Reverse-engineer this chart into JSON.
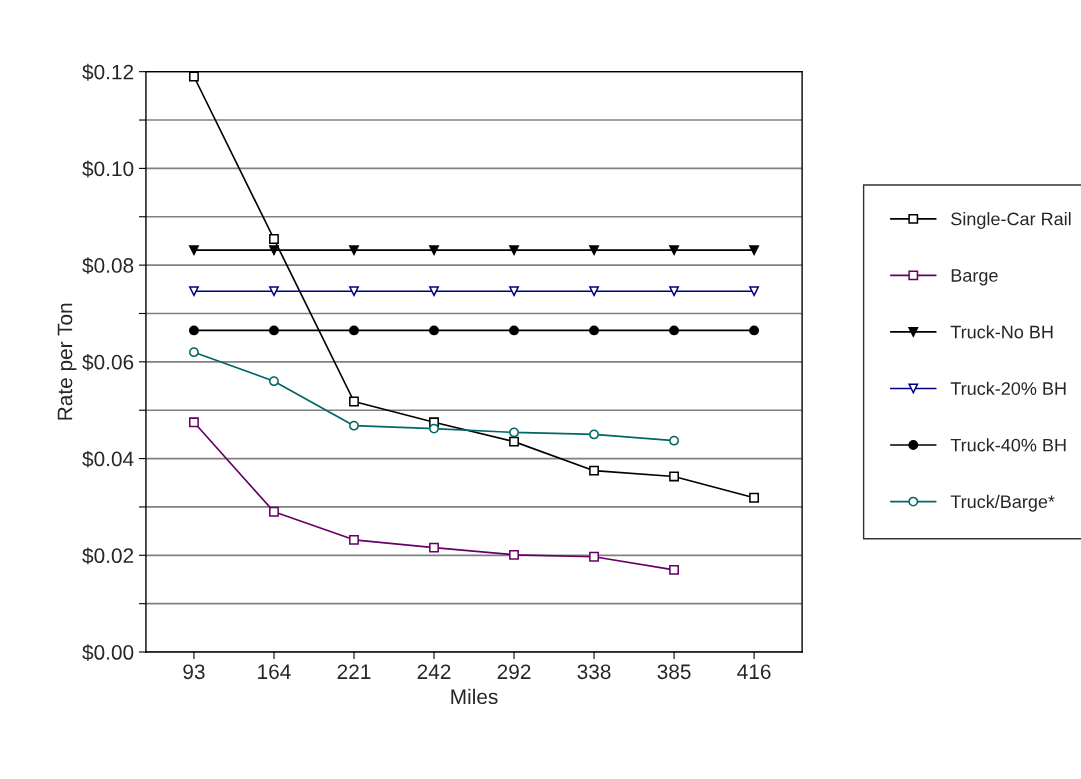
{
  "chart_data": {
    "type": "line",
    "xlabel": "Miles",
    "ylabel": "Rate per Ton",
    "categories": [
      "93",
      "164",
      "221",
      "242",
      "292",
      "338",
      "385",
      "416"
    ],
    "series": [
      {
        "name": "Single-Car Rail",
        "color": "#000000",
        "marker": "square",
        "values": [
          0.119,
          0.0854,
          0.0518,
          0.0475,
          0.0435,
          0.0375,
          0.0363,
          0.0319
        ]
      },
      {
        "name": "Barge",
        "color": "#660066",
        "marker": "square",
        "values": [
          0.0475,
          0.029,
          0.0232,
          0.0216,
          0.0201,
          0.0197,
          0.017,
          null
        ]
      },
      {
        "name": "Truck-No BH",
        "color": "#000000",
        "marker": "triangle",
        "values": [
          0.0831,
          0.0831,
          0.0831,
          0.0831,
          0.0831,
          0.0831,
          0.0831,
          0.0831
        ]
      },
      {
        "name": "Truck-20% BH",
        "color": "#000080",
        "marker": "triangle",
        "values": [
          0.0746,
          0.0746,
          0.0746,
          0.0746,
          0.0746,
          0.0746,
          0.0746,
          0.0746
        ]
      },
      {
        "name": "Truck-40% BH",
        "color": "#000000",
        "marker": "circle",
        "values": [
          0.0665,
          0.0665,
          0.0665,
          0.0665,
          0.0665,
          0.0665,
          0.0665,
          0.0665
        ]
      },
      {
        "name": "Truck/Barge*",
        "color": "#006666",
        "marker": "circle",
        "values": [
          0.062,
          0.056,
          0.0468,
          0.0462,
          0.0454,
          0.045,
          0.0437,
          null
        ]
      }
    ],
    "ylim": [
      0,
      0.12
    ],
    "yticks": [
      {
        "value": 0,
        "label": "$0.00"
      },
      {
        "value": 0.01,
        "label": null
      },
      {
        "value": 0.02,
        "label": "$0.02"
      },
      {
        "value": 0.03,
        "label": null
      },
      {
        "value": 0.04,
        "label": "$0.04"
      },
      {
        "value": 0.05,
        "label": null
      },
      {
        "value": 0.06,
        "label": "$0.06"
      },
      {
        "value": 0.07,
        "label": null
      },
      {
        "value": 0.08,
        "label": "$0.08"
      },
      {
        "value": 0.09,
        "label": null
      },
      {
        "value": 0.1,
        "label": "$0.10"
      },
      {
        "value": 0.11,
        "label": null
      },
      {
        "value": 0.12,
        "label": "$0.12"
      }
    ],
    "grid": "y",
    "legend": "right"
  }
}
